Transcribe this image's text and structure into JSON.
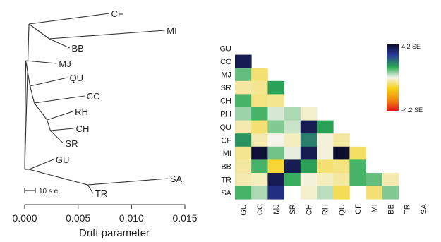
{
  "chart_data": [
    {
      "type": "tree",
      "xlabel": "Drift parameter",
      "xlim": [
        0,
        0.015
      ],
      "x_ticks": [
        "0.000",
        "0.005",
        "0.010",
        "0.015"
      ],
      "scale_bar_label": "10 s.e.",
      "tips": [
        "CF",
        "MI",
        "BB",
        "MJ",
        "QU",
        "CC",
        "RH",
        "CH",
        "SR",
        "GU",
        "SA",
        "TR"
      ],
      "branches": [
        {
          "from": "root",
          "to": "n_cf",
          "length": 0.0004
        },
        {
          "from": "n_cf",
          "to": "CF",
          "length": 0.0075
        },
        {
          "from": "n_cf",
          "to": "n_mi",
          "length": 0.0019
        },
        {
          "from": "n_mi",
          "to": "MI",
          "length": 0.0108
        },
        {
          "from": "n_mi",
          "to": "BB",
          "length": 0.0019
        },
        {
          "from": "root",
          "to": "n_mj",
          "length": 0.0001
        },
        {
          "from": "n_mj",
          "to": "MJ",
          "length": 0.0029
        },
        {
          "from": "n_mj",
          "to": "n_qu",
          "length": 0.0004
        },
        {
          "from": "n_qu",
          "to": "QU",
          "length": 0.0035
        },
        {
          "from": "n_qu",
          "to": "n_cc",
          "length": 0.0004
        },
        {
          "from": "n_cc",
          "to": "CC",
          "length": 0.0047
        },
        {
          "from": "n_cc",
          "to": "n_rh",
          "length": 0.0012
        },
        {
          "from": "n_rh",
          "to": "RH",
          "length": 0.0024
        },
        {
          "from": "n_rh",
          "to": "n_ch",
          "length": 0.0003
        },
        {
          "from": "n_ch",
          "to": "CH",
          "length": 0.0022
        },
        {
          "from": "n_ch",
          "to": "SR",
          "length": 0.0012
        },
        {
          "from": "root",
          "to": "n_gu",
          "length": 0.0004
        },
        {
          "from": "n_gu",
          "to": "GU",
          "length": 0.0023
        },
        {
          "from": "n_gu",
          "to": "n_sa",
          "length": 0.0055
        },
        {
          "from": "n_sa",
          "to": "SA",
          "length": 0.0075
        },
        {
          "from": "n_sa",
          "to": "TR",
          "length": 0.0005
        }
      ]
    },
    {
      "type": "heatmap",
      "row_labels": [
        "GU",
        "CC",
        "MJ",
        "SR",
        "CH",
        "RH",
        "QU",
        "CF",
        "MI",
        "BB",
        "TR",
        "SA"
      ],
      "col_labels": [
        "GU",
        "CC",
        "MJ",
        "SR",
        "CH",
        "RH",
        "QU",
        "CF",
        "MI",
        "BB",
        "TR",
        "SA"
      ],
      "value_range": [
        -4.2,
        4.2
      ],
      "legend_max_label": "4.2 SE",
      "legend_min_label": "-4.2 SE",
      "values": [
        [],
        [
          3.8
        ],
        [
          1.0,
          -0.8
        ],
        [
          -0.5,
          -0.6,
          1.5
        ],
        [
          1.2,
          -0.7,
          -0.6
        ],
        [
          0.6,
          1.2,
          0.2,
          0.5,
          -0.2
        ],
        [
          -0.4,
          -0.8,
          0.8,
          0.3,
          3.8,
          1.5
        ],
        [
          1.7,
          -0.4,
          0.0,
          -0.3,
          2.0,
          -0.1,
          -0.5
        ],
        [
          -0.6,
          4.1,
          0.9,
          0.1,
          3.8,
          -0.1,
          4.2,
          -0.9
        ],
        [
          -0.5,
          1.2,
          -1.2,
          3.8,
          1.5,
          -0.8,
          -0.7,
          1.2
        ],
        [
          -0.4,
          -0.3,
          3.8,
          1.3,
          -0.1,
          -0.3,
          -0.5,
          1.2,
          1.0,
          -0.4
        ],
        [
          1.2,
          0.5,
          3.3,
          null,
          -0.2,
          0.4,
          -1.0,
          null,
          -0.8,
          0.8
        ]
      ]
    }
  ]
}
